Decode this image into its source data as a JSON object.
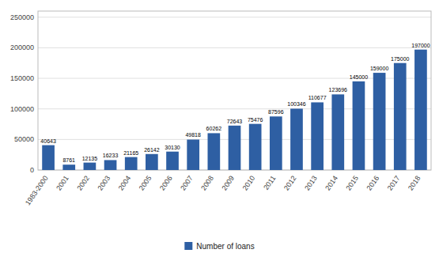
{
  "chart_data": {
    "type": "bar",
    "categories": [
      "1983-2000",
      "2001",
      "2002",
      "2003",
      "2004",
      "2005",
      "2006",
      "2007",
      "2008",
      "2009",
      "2010",
      "2011",
      "2012",
      "2013",
      "2014",
      "2015",
      "2016",
      "2017",
      "2018"
    ],
    "series": [
      {
        "name": "Number of loans",
        "color": "#2E5FA3",
        "values": [
          40643,
          8761,
          12135,
          16233,
          21165,
          26142,
          30130,
          49818,
          60262,
          72643,
          75476,
          87596,
          100346,
          110677,
          123696,
          145000,
          159000,
          175000,
          197000
        ]
      }
    ],
    "ylim": [
      0,
      260000
    ],
    "yticks": [
      0,
      50000,
      100000,
      150000,
      200000,
      250000
    ],
    "grid": true,
    "data_labels": true,
    "legend": "bottom"
  }
}
